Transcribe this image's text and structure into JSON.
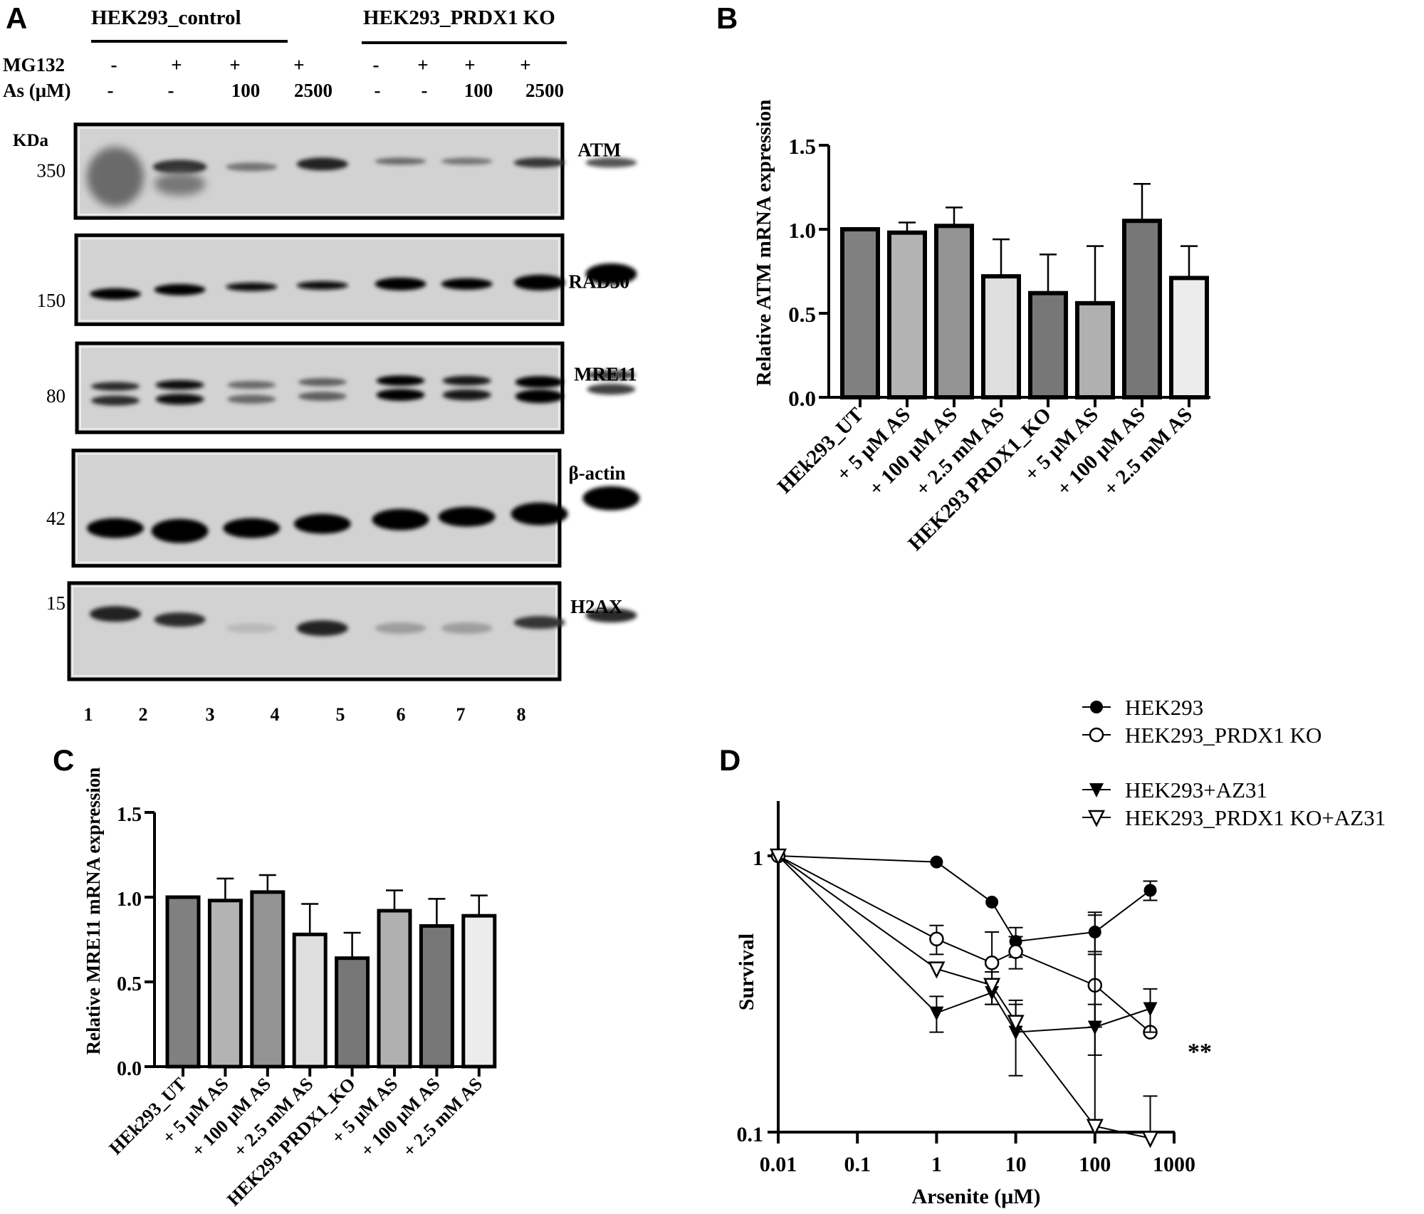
{
  "panels": {
    "A": {
      "letter": "A",
      "groups": [
        "HEK293_control",
        "HEK293_PRDX1 KO"
      ],
      "row_labels": [
        "MG132",
        "As (μM)"
      ],
      "mg132": [
        "-",
        "+",
        "+",
        "+",
        "-",
        "+",
        "+",
        "+"
      ],
      "as_um": [
        "-",
        "-",
        "100",
        "2500",
        "-",
        "-",
        "100",
        "2500"
      ],
      "kda_label": "KDa",
      "blots": [
        {
          "protein": "ATM",
          "marker": "350"
        },
        {
          "protein": "RAD50",
          "marker": "150"
        },
        {
          "protein": "MRE11",
          "marker": "80"
        },
        {
          "protein": "β-actin",
          "marker": "42"
        },
        {
          "protein": "H2AX",
          "marker": "15"
        }
      ],
      "lanes": [
        "1",
        "2",
        "3",
        "4",
        "5",
        "6",
        "7",
        "8"
      ]
    },
    "B": {
      "letter": "B"
    },
    "C": {
      "letter": "C"
    },
    "D": {
      "letter": "D",
      "significance": "**"
    }
  },
  "chart_data": [
    {
      "panel": "B",
      "type": "bar",
      "title": "",
      "xlabel": "",
      "ylabel": "Relative ATM mRNA expression",
      "ylim": [
        0,
        1.5
      ],
      "yticks": [
        "0.0",
        "0.5",
        "1.0",
        "1.5"
      ],
      "grid": false,
      "categories": [
        "HEk293_UT",
        "+ 5 μM AS",
        "+ 100 μM AS",
        "+ 2.5 mM AS",
        "HEK293 PRDX1_KO",
        "+ 5 μM AS",
        "+ 100 μM AS",
        "+ 2.5 mM AS"
      ],
      "values": [
        1.0,
        0.98,
        1.02,
        0.72,
        0.62,
        0.56,
        1.05,
        0.71
      ],
      "error_upper": [
        1.0,
        1.04,
        1.13,
        0.94,
        0.85,
        0.9,
        1.27,
        0.9
      ],
      "colors": [
        "#808080",
        "#b3b3b3",
        "#939393",
        "#dedede",
        "#777777",
        "#b0b0b0",
        "#777777",
        "#ececec"
      ]
    },
    {
      "panel": "C",
      "type": "bar",
      "title": "",
      "xlabel": "",
      "ylabel": "Relative MRE11 mRNA expression",
      "ylim": [
        0,
        1.5
      ],
      "yticks": [
        "0.0",
        "0.5",
        "1.0",
        "1.5"
      ],
      "grid": false,
      "categories": [
        "HEk293_UT",
        "+ 5 μM AS",
        "+ 100 μM AS",
        "+ 2.5 mM AS",
        "HEK293 PRDX1_KO",
        "+ 5 μM AS",
        "+ 100 μM AS",
        "+ 2.5 mM AS"
      ],
      "values": [
        1.0,
        0.98,
        1.03,
        0.78,
        0.64,
        0.92,
        0.83,
        0.89
      ],
      "error_upper": [
        1.0,
        1.11,
        1.13,
        0.96,
        0.79,
        1.04,
        0.99,
        1.01
      ],
      "colors": [
        "#808080",
        "#b3b3b3",
        "#939393",
        "#dedede",
        "#777777",
        "#b0b0b0",
        "#777777",
        "#ececec"
      ]
    },
    {
      "panel": "D",
      "type": "line",
      "title": "",
      "xlabel": "Arsenite (μM)",
      "ylabel": "Survival",
      "xscale": "log",
      "yscale": "log",
      "xlim": [
        0.01,
        1000
      ],
      "ylim": [
        0.1,
        1.4
      ],
      "xticks": [
        "0.01",
        "0.1",
        "1",
        "10",
        "100",
        "1000"
      ],
      "yticks": [
        "0.1",
        "1"
      ],
      "legend_position": "top-right",
      "x": [
        0.01,
        1,
        5,
        10,
        100,
        500
      ],
      "series": [
        {
          "name": "HEK293",
          "marker": "filled-circle",
          "values": [
            1.0,
            0.95,
            0.68,
            0.49,
            0.53,
            0.75
          ],
          "err": [
            0,
            0,
            0,
            0.06,
            0.08,
            0.06
          ]
        },
        {
          "name": "HEK293_PRDX1 KO",
          "marker": "open-circle",
          "values": [
            1.0,
            0.5,
            0.41,
            0.45,
            0.34,
            0.23
          ],
          "err": [
            0,
            0.06,
            0.12,
            0.06,
            0.1,
            0
          ]
        },
        {
          "name": "HEK293+AZ31",
          "marker": "filled-triangle",
          "values": [
            1.0,
            0.27,
            0.32,
            0.23,
            0.24,
            0.28
          ],
          "err": [
            0,
            0.04,
            0.03,
            0.07,
            0.05,
            0.05
          ]
        },
        {
          "name": "HEK293_PRDX1 KO+AZ31",
          "marker": "open-triangle",
          "values": [
            1.0,
            0.39,
            0.34,
            0.25,
            0.105,
            0.095
          ],
          "err": [
            0,
            0,
            0.04,
            0.04,
            0.52,
            0.04
          ]
        }
      ]
    }
  ]
}
